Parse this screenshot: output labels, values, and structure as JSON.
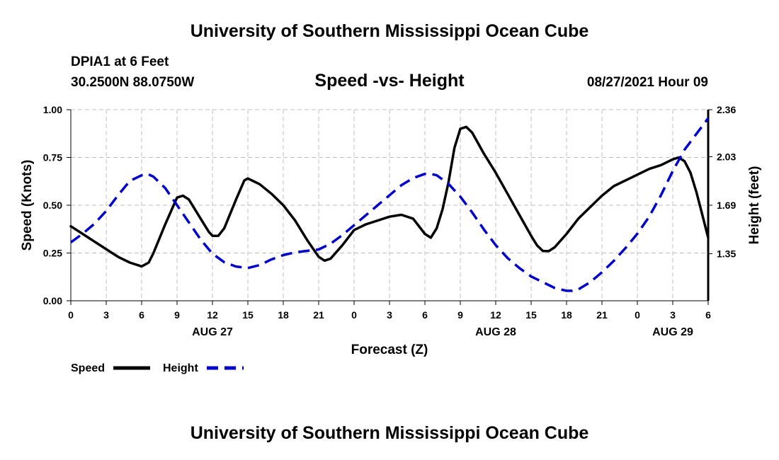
{
  "header": {
    "title": "University of Southern Mississippi Ocean Cube",
    "station": "DPIA1 at 6 Feet",
    "coordinates": "30.2500N  88.0750W",
    "subtitle": "Speed -vs- Height",
    "datetime": "08/27/2021 Hour 09"
  },
  "footer": {
    "title": "University of Southern Mississippi Ocean Cube"
  },
  "chart_data": {
    "type": "line",
    "title": "Speed -vs- Height",
    "xlabel": "Forecast (Z)",
    "ylabel_left": "Speed (Knots)",
    "ylabel_right": "Height (feet)",
    "x_range": [
      0,
      54
    ],
    "x_ticks": [
      0,
      3,
      6,
      9,
      12,
      15,
      18,
      21,
      24,
      27,
      30,
      33,
      36,
      39,
      42,
      45,
      48,
      51,
      54
    ],
    "x_tick_labels": [
      "0",
      "3",
      "6",
      "9",
      "12",
      "15",
      "18",
      "21",
      "0",
      "3",
      "6",
      "9",
      "12",
      "15",
      "18",
      "21",
      "0",
      "3",
      "6"
    ],
    "date_labels": [
      {
        "x": 12,
        "label": "AUG 27"
      },
      {
        "x": 36,
        "label": "AUG 28"
      },
      {
        "x": 51,
        "label": "AUG 29"
      }
    ],
    "y_left_range": [
      0,
      1
    ],
    "y_left_ticks": [
      0,
      0.25,
      0.5,
      0.75,
      1
    ],
    "y_left_tick_labels": [
      "0.00",
      "0.25",
      "0.50",
      "0.75",
      "1.00"
    ],
    "y_right_range": [
      1.02,
      2.36
    ],
    "y_right_ticks": [
      1.35,
      1.69,
      2.03,
      2.36
    ],
    "y_right_tick_labels": [
      "1.35",
      "1.69",
      "2.03",
      "2.36"
    ],
    "grid": true,
    "legend_position": "bottom-left",
    "series": [
      {
        "name": "Speed",
        "axis": "left",
        "color": "#000000",
        "dash": "solid",
        "points": [
          [
            0,
            0.39
          ],
          [
            1,
            0.35
          ],
          [
            2,
            0.31
          ],
          [
            3,
            0.27
          ],
          [
            4,
            0.23
          ],
          [
            5,
            0.2
          ],
          [
            6,
            0.18
          ],
          [
            6.6,
            0.2
          ],
          [
            7,
            0.25
          ],
          [
            8,
            0.4
          ],
          [
            9,
            0.54
          ],
          [
            9.5,
            0.55
          ],
          [
            10,
            0.53
          ],
          [
            11,
            0.43
          ],
          [
            11.7,
            0.36
          ],
          [
            12,
            0.34
          ],
          [
            12.5,
            0.34
          ],
          [
            13,
            0.38
          ],
          [
            14,
            0.53
          ],
          [
            14.7,
            0.63
          ],
          [
            15,
            0.64
          ],
          [
            16,
            0.61
          ],
          [
            17,
            0.56
          ],
          [
            18,
            0.5
          ],
          [
            19,
            0.42
          ],
          [
            20,
            0.32
          ],
          [
            21,
            0.23
          ],
          [
            21.5,
            0.21
          ],
          [
            22,
            0.22
          ],
          [
            23,
            0.29
          ],
          [
            24,
            0.37
          ],
          [
            25,
            0.4
          ],
          [
            27,
            0.44
          ],
          [
            28,
            0.45
          ],
          [
            29,
            0.43
          ],
          [
            30,
            0.35
          ],
          [
            30.5,
            0.33
          ],
          [
            31,
            0.38
          ],
          [
            31.5,
            0.48
          ],
          [
            32,
            0.62
          ],
          [
            32.5,
            0.8
          ],
          [
            33,
            0.9
          ],
          [
            33.5,
            0.91
          ],
          [
            34,
            0.88
          ],
          [
            35,
            0.77
          ],
          [
            36,
            0.67
          ],
          [
            37,
            0.56
          ],
          [
            38,
            0.45
          ],
          [
            39,
            0.34
          ],
          [
            39.5,
            0.29
          ],
          [
            40,
            0.26
          ],
          [
            40.5,
            0.26
          ],
          [
            41,
            0.28
          ],
          [
            42,
            0.35
          ],
          [
            43,
            0.43
          ],
          [
            44,
            0.49
          ],
          [
            45,
            0.55
          ],
          [
            46,
            0.6
          ],
          [
            47,
            0.63
          ],
          [
            48,
            0.66
          ],
          [
            49,
            0.69
          ],
          [
            50,
            0.71
          ],
          [
            51,
            0.74
          ],
          [
            51.5,
            0.75
          ],
          [
            52,
            0.73
          ],
          [
            52.5,
            0.67
          ],
          [
            53,
            0.57
          ],
          [
            53.5,
            0.45
          ],
          [
            54,
            0.33
          ]
        ]
      },
      {
        "name": "Height",
        "axis": "right",
        "color": "#0000cc",
        "dash": "dashed",
        "points": [
          [
            0,
            1.43
          ],
          [
            1,
            1.49
          ],
          [
            2,
            1.56
          ],
          [
            3,
            1.65
          ],
          [
            4,
            1.76
          ],
          [
            5,
            1.86
          ],
          [
            6,
            1.9
          ],
          [
            6.5,
            1.91
          ],
          [
            7,
            1.89
          ],
          [
            8,
            1.81
          ],
          [
            9,
            1.69
          ],
          [
            10,
            1.57
          ],
          [
            11,
            1.45
          ],
          [
            12,
            1.35
          ],
          [
            13,
            1.29
          ],
          [
            14,
            1.26
          ],
          [
            15,
            1.25
          ],
          [
            16,
            1.27
          ],
          [
            17,
            1.31
          ],
          [
            18,
            1.34
          ],
          [
            19,
            1.36
          ],
          [
            20,
            1.37
          ],
          [
            21,
            1.38
          ],
          [
            22,
            1.42
          ],
          [
            23,
            1.48
          ],
          [
            24,
            1.55
          ],
          [
            25,
            1.62
          ],
          [
            26,
            1.69
          ],
          [
            27,
            1.76
          ],
          [
            28,
            1.83
          ],
          [
            29,
            1.88
          ],
          [
            30,
            1.91
          ],
          [
            30.5,
            1.91
          ],
          [
            31,
            1.9
          ],
          [
            32,
            1.84
          ],
          [
            33,
            1.75
          ],
          [
            34,
            1.64
          ],
          [
            35,
            1.52
          ],
          [
            36,
            1.41
          ],
          [
            37,
            1.32
          ],
          [
            38,
            1.25
          ],
          [
            39,
            1.19
          ],
          [
            40,
            1.15
          ],
          [
            41,
            1.11
          ],
          [
            42,
            1.09
          ],
          [
            42.5,
            1.09
          ],
          [
            43,
            1.1
          ],
          [
            44,
            1.15
          ],
          [
            45,
            1.22
          ],
          [
            46,
            1.3
          ],
          [
            47,
            1.39
          ],
          [
            48,
            1.49
          ],
          [
            49,
            1.61
          ],
          [
            50,
            1.76
          ],
          [
            51,
            1.93
          ],
          [
            52,
            2.08
          ],
          [
            53,
            2.19
          ],
          [
            54,
            2.3
          ]
        ]
      }
    ]
  }
}
